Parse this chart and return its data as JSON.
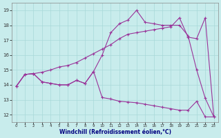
{
  "xlabel": "Windchill (Refroidissement éolien,°C)",
  "bg_color": "#c8ecec",
  "grid_color": "#a8d8d8",
  "line_color": "#993399",
  "xlim": [
    -0.5,
    23.5
  ],
  "ylim": [
    11.5,
    19.5
  ],
  "xticks": [
    0,
    1,
    2,
    3,
    4,
    5,
    6,
    7,
    8,
    9,
    10,
    11,
    12,
    13,
    14,
    15,
    16,
    17,
    18,
    19,
    20,
    21,
    22,
    23
  ],
  "yticks": [
    12,
    13,
    14,
    15,
    16,
    17,
    18,
    19
  ],
  "line1_x": [
    0,
    1,
    2,
    3,
    4,
    5,
    6,
    7,
    8,
    9,
    10,
    11,
    12,
    13,
    14,
    15,
    16,
    17,
    18,
    19,
    20,
    21,
    22,
    23
  ],
  "line1_y": [
    13.9,
    14.7,
    14.75,
    14.2,
    14.1,
    14.0,
    14.0,
    14.3,
    14.1,
    14.9,
    13.15,
    13.05,
    12.9,
    12.85,
    12.8,
    12.7,
    12.6,
    12.5,
    12.4,
    12.3,
    12.3,
    12.9,
    11.85,
    11.85
  ],
  "line2_x": [
    0,
    1,
    2,
    3,
    4,
    5,
    6,
    7,
    8,
    9,
    10,
    11,
    12,
    13,
    14,
    15,
    16,
    17,
    18,
    19,
    20,
    21,
    22,
    23
  ],
  "line2_y": [
    13.9,
    14.7,
    14.75,
    14.85,
    15.0,
    15.2,
    15.3,
    15.5,
    15.8,
    16.1,
    16.4,
    16.7,
    17.1,
    17.4,
    17.5,
    17.6,
    17.7,
    17.8,
    17.9,
    18.5,
    17.2,
    17.1,
    18.5,
    11.85
  ],
  "line3_x": [
    0,
    1,
    2,
    3,
    4,
    5,
    6,
    7,
    8,
    9,
    10,
    11,
    12,
    13,
    14,
    15,
    16,
    17,
    18,
    19,
    20,
    21,
    22,
    23
  ],
  "line3_y": [
    13.9,
    14.7,
    14.75,
    14.2,
    14.1,
    14.0,
    14.0,
    14.3,
    14.1,
    14.9,
    16.0,
    17.5,
    18.1,
    18.35,
    19.0,
    18.2,
    18.1,
    18.0,
    18.0,
    18.0,
    17.3,
    15.0,
    13.1,
    11.85
  ]
}
